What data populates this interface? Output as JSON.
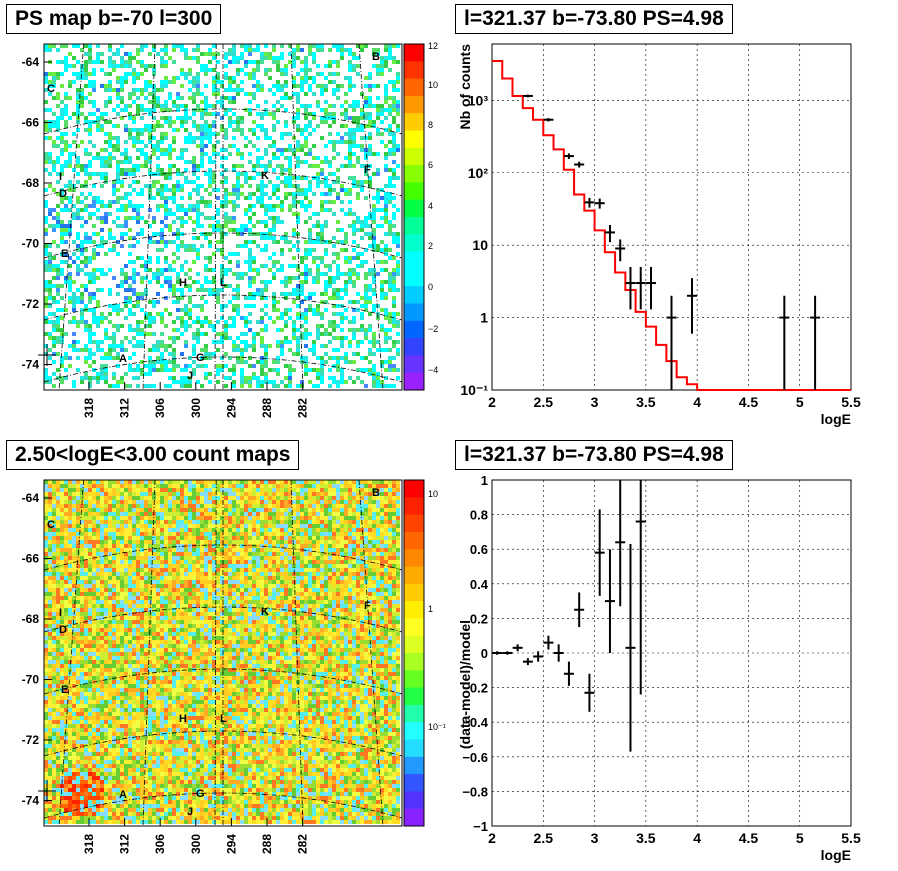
{
  "panels": {
    "top_left_title": "PS map b=-70 l=300",
    "top_right_title": "l=321.37 b=-73.80 PS=4.98",
    "bottom_left_title": "2.50<logE<3.00 count maps",
    "bottom_right_title": "l=321.37 b=-73.80 PS=4.98"
  },
  "sky_maps": {
    "b_ticks": [
      "-64",
      "-66",
      "-68",
      "-70",
      "-72",
      "-74"
    ],
    "l_ticks": [
      "318",
      "312",
      "306",
      "300",
      "294",
      "288",
      "282"
    ],
    "source_labels": [
      "A",
      "B",
      "C",
      "D",
      "E",
      "F",
      "G",
      "H",
      "I",
      "J",
      "K",
      "L"
    ],
    "ps_colorbar_ticks": [
      "12",
      "10",
      "8",
      "6",
      "4",
      "2",
      "0",
      "−2",
      "−4"
    ],
    "count_colorbar_ticks": [
      "10",
      "1",
      "10⁻¹"
    ],
    "colors": {
      "cyan": "#00ffff",
      "green": "#33cc33",
      "yellow": "#ffee33",
      "red": "#ff2200"
    }
  },
  "chart_data": [
    {
      "type": "line",
      "title": "l=321.37 b=-73.80 PS=4.98",
      "xlabel": "logE",
      "ylabel": "Nb of counts",
      "xlim": [
        2,
        5.5
      ],
      "ylim": [
        0.1,
        6000
      ],
      "yscale": "log",
      "x_ticks": [
        "2",
        "2.5",
        "3",
        "3.5",
        "4",
        "4.5",
        "5",
        "5.5"
      ],
      "y_ticks": [
        "10⁻¹",
        "1",
        "10",
        "10²",
        "10³"
      ],
      "grid": true,
      "model_step": {
        "color": "#ff0000",
        "edges": [
          2.0,
          2.1,
          2.2,
          2.3,
          2.4,
          2.5,
          2.6,
          2.7,
          2.8,
          2.9,
          3.0,
          3.1,
          3.2,
          3.3,
          3.4,
          3.5,
          3.6,
          3.7,
          3.8,
          3.9,
          4.0,
          5.5
        ],
        "values": [
          3500,
          2000,
          1150,
          780,
          540,
          330,
          210,
          110,
          50,
          30,
          16,
          8,
          4.2,
          2.4,
          1.2,
          0.75,
          0.42,
          0.25,
          0.15,
          0.12,
          0.1
        ]
      },
      "data_points": [
        {
          "x": 2.35,
          "y": 1150,
          "lo": 1100,
          "hi": 1200
        },
        {
          "x": 2.55,
          "y": 540,
          "lo": 510,
          "hi": 570
        },
        {
          "x": 2.75,
          "y": 170,
          "lo": 155,
          "hi": 185
        },
        {
          "x": 2.85,
          "y": 130,
          "lo": 118,
          "hi": 142
        },
        {
          "x": 2.95,
          "y": 39,
          "lo": 33,
          "hi": 45
        },
        {
          "x": 3.05,
          "y": 38,
          "lo": 32,
          "hi": 44
        },
        {
          "x": 3.15,
          "y": 15,
          "lo": 11,
          "hi": 19
        },
        {
          "x": 3.25,
          "y": 9,
          "lo": 6,
          "hi": 12
        },
        {
          "x": 3.35,
          "y": 3,
          "lo": 1.3,
          "hi": 5
        },
        {
          "x": 3.45,
          "y": 3,
          "lo": 1.3,
          "hi": 5
        },
        {
          "x": 3.55,
          "y": 3,
          "lo": 1.3,
          "hi": 5
        },
        {
          "x": 3.75,
          "y": 1,
          "lo": 0.1,
          "hi": 2
        },
        {
          "x": 3.95,
          "y": 2,
          "lo": 0.6,
          "hi": 3.5
        },
        {
          "x": 4.85,
          "y": 1,
          "lo": 0.1,
          "hi": 2
        },
        {
          "x": 5.15,
          "y": 1,
          "lo": 0.1,
          "hi": 2
        }
      ]
    },
    {
      "type": "scatter",
      "title": "l=321.37 b=-73.80 PS=4.98",
      "xlabel": "logE",
      "ylabel": "(data-model)/model",
      "xlim": [
        2,
        5.5
      ],
      "ylim": [
        -1,
        1
      ],
      "x_ticks": [
        "2",
        "2.5",
        "3",
        "3.5",
        "4",
        "4.5",
        "5",
        "5.5"
      ],
      "y_ticks": [
        "−1",
        "−0.8",
        "−0.6",
        "−0.4",
        "−0.2",
        "0",
        "0.2",
        "0.4",
        "0.6",
        "0.8",
        "1"
      ],
      "grid": true,
      "points": [
        {
          "x": 2.05,
          "y": 0.0,
          "err": 0.01
        },
        {
          "x": 2.15,
          "y": 0.0,
          "err": 0.01
        },
        {
          "x": 2.25,
          "y": 0.03,
          "err": 0.02
        },
        {
          "x": 2.35,
          "y": -0.05,
          "err": 0.02
        },
        {
          "x": 2.45,
          "y": -0.02,
          "err": 0.03
        },
        {
          "x": 2.55,
          "y": 0.06,
          "err": 0.04
        },
        {
          "x": 2.65,
          "y": 0.0,
          "err": 0.05
        },
        {
          "x": 2.75,
          "y": -0.12,
          "err": 0.07
        },
        {
          "x": 2.85,
          "y": 0.25,
          "err": 0.1
        },
        {
          "x": 2.95,
          "y": -0.23,
          "err": 0.11
        },
        {
          "x": 3.05,
          "y": 0.58,
          "err": 0.25
        },
        {
          "x": 3.15,
          "y": 0.3,
          "err": 0.3
        },
        {
          "x": 3.25,
          "y": 0.64,
          "err": 0.37
        },
        {
          "x": 3.35,
          "y": 0.03,
          "err": 0.6
        },
        {
          "x": 3.45,
          "y": 0.76,
          "err": 1.0
        }
      ]
    }
  ]
}
